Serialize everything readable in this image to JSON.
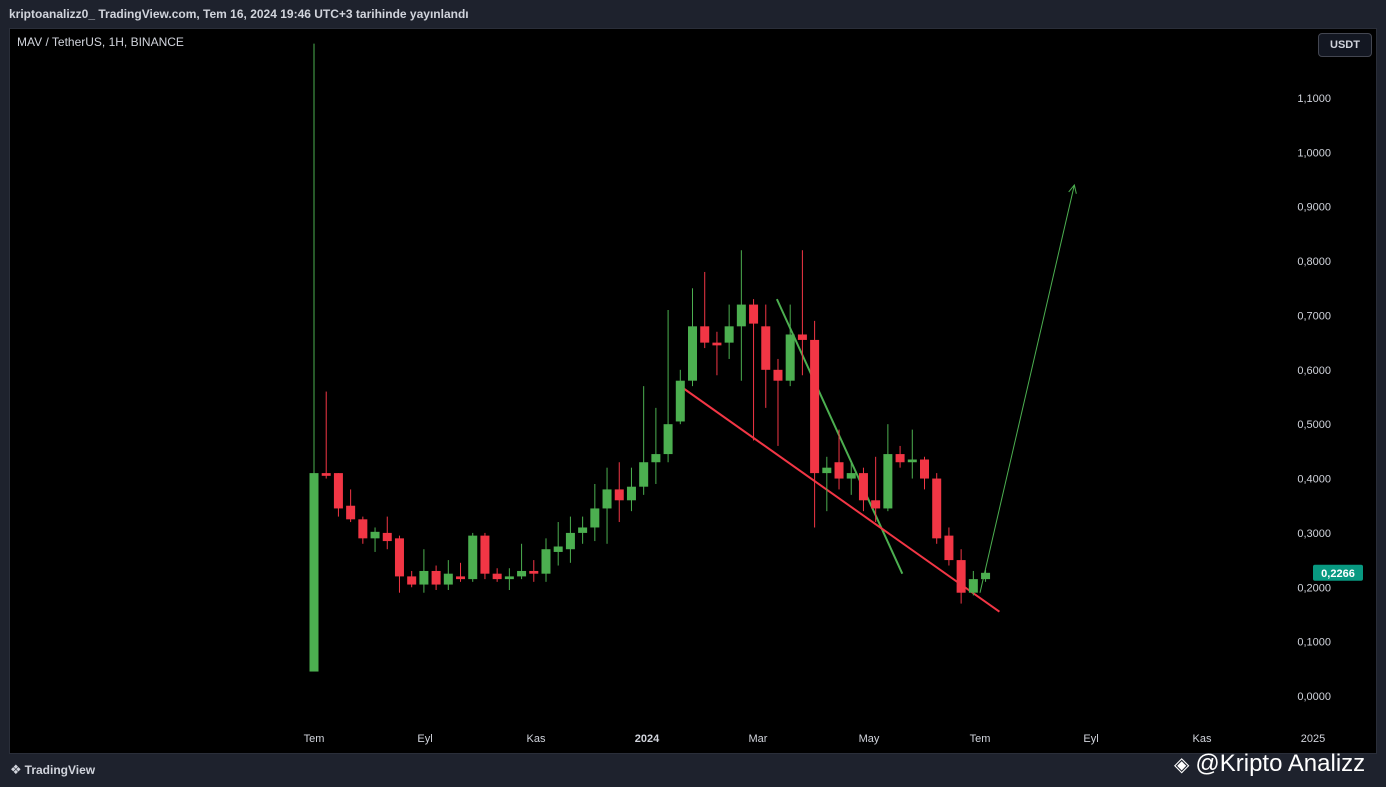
{
  "header": {
    "publish_info": "kriptoanalizz0_ TradingView.com, Tem 16, 2024 19:46 UTC+3 tarihinde yayınlandı"
  },
  "symbol_info": "MAV / TetherUS, 1H, BINANCE",
  "currency_badge": "USDT",
  "footer": {
    "tradingview_logo": "TradingView",
    "watermark": "@Kripto Analizz",
    "watermark_icon": "binance-diamond-icon"
  },
  "colors": {
    "up": "#4caf50",
    "down": "#f23645",
    "price_tag": "#089981",
    "background": "#000000"
  },
  "chart_data": {
    "type": "candlestick",
    "y_axis": {
      "min": 0.0,
      "max": 1.1,
      "ticks": [
        "1,1000",
        "1,0000",
        "0,9000",
        "0,8000",
        "0,7000",
        "0,6000",
        "0,5000",
        "0,4000",
        "0,3000",
        "0,2000",
        "0,1000",
        "0,0000"
      ],
      "tick_values": [
        1.1,
        1.0,
        0.9,
        0.8,
        0.7,
        0.6,
        0.5,
        0.4,
        0.3,
        0.2,
        0.1,
        0.0
      ]
    },
    "x_axis": {
      "labels": [
        {
          "label": "Tem",
          "pos": 0.0,
          "bold": false
        },
        {
          "label": "Eyl",
          "pos": 2.0,
          "bold": false
        },
        {
          "label": "Kas",
          "pos": 4.0,
          "bold": false
        },
        {
          "label": "2024",
          "pos": 6.0,
          "bold": true
        },
        {
          "label": "Mar",
          "pos": 8.0,
          "bold": false
        },
        {
          "label": "May",
          "pos": 10.0,
          "bold": false
        },
        {
          "label": "Tem",
          "pos": 12.0,
          "bold": false
        },
        {
          "label": "Eyl",
          "pos": 14.0,
          "bold": false
        },
        {
          "label": "Kas",
          "pos": 16.0,
          "bold": false
        },
        {
          "label": "2025",
          "pos": 18.0,
          "bold": false
        }
      ]
    },
    "last_price": 0.2266,
    "last_price_label": "0,2266",
    "candles": [
      {
        "t": 0.0,
        "o": 0.045,
        "h": 1.2,
        "l": 0.045,
        "c": 0.41
      },
      {
        "t": 0.22,
        "o": 0.41,
        "h": 0.56,
        "l": 0.4,
        "c": 0.405
      },
      {
        "t": 0.44,
        "o": 0.41,
        "h": 0.41,
        "l": 0.33,
        "c": 0.345
      },
      {
        "t": 0.66,
        "o": 0.35,
        "h": 0.38,
        "l": 0.32,
        "c": 0.325
      },
      {
        "t": 0.88,
        "o": 0.325,
        "h": 0.33,
        "l": 0.28,
        "c": 0.29
      },
      {
        "t": 1.1,
        "o": 0.29,
        "h": 0.31,
        "l": 0.265,
        "c": 0.302
      },
      {
        "t": 1.32,
        "o": 0.3,
        "h": 0.33,
        "l": 0.27,
        "c": 0.285
      },
      {
        "t": 1.54,
        "o": 0.29,
        "h": 0.295,
        "l": 0.19,
        "c": 0.22
      },
      {
        "t": 1.76,
        "o": 0.22,
        "h": 0.23,
        "l": 0.2,
        "c": 0.205
      },
      {
        "t": 1.98,
        "o": 0.205,
        "h": 0.27,
        "l": 0.19,
        "c": 0.23
      },
      {
        "t": 2.2,
        "o": 0.23,
        "h": 0.24,
        "l": 0.195,
        "c": 0.205
      },
      {
        "t": 2.42,
        "o": 0.205,
        "h": 0.25,
        "l": 0.195,
        "c": 0.225
      },
      {
        "t": 2.64,
        "o": 0.22,
        "h": 0.245,
        "l": 0.21,
        "c": 0.215
      },
      {
        "t": 2.86,
        "o": 0.215,
        "h": 0.3,
        "l": 0.21,
        "c": 0.295
      },
      {
        "t": 3.08,
        "o": 0.295,
        "h": 0.3,
        "l": 0.215,
        "c": 0.225
      },
      {
        "t": 3.3,
        "o": 0.225,
        "h": 0.235,
        "l": 0.21,
        "c": 0.215
      },
      {
        "t": 3.52,
        "o": 0.215,
        "h": 0.235,
        "l": 0.195,
        "c": 0.22
      },
      {
        "t": 3.74,
        "o": 0.22,
        "h": 0.28,
        "l": 0.215,
        "c": 0.23
      },
      {
        "t": 3.96,
        "o": 0.23,
        "h": 0.25,
        "l": 0.21,
        "c": 0.225
      },
      {
        "t": 4.18,
        "o": 0.225,
        "h": 0.29,
        "l": 0.21,
        "c": 0.27
      },
      {
        "t": 4.4,
        "o": 0.265,
        "h": 0.32,
        "l": 0.24,
        "c": 0.275
      },
      {
        "t": 4.62,
        "o": 0.27,
        "h": 0.33,
        "l": 0.245,
        "c": 0.3
      },
      {
        "t": 4.84,
        "o": 0.3,
        "h": 0.33,
        "l": 0.28,
        "c": 0.31
      },
      {
        "t": 5.06,
        "o": 0.31,
        "h": 0.39,
        "l": 0.285,
        "c": 0.345
      },
      {
        "t": 5.28,
        "o": 0.345,
        "h": 0.42,
        "l": 0.28,
        "c": 0.38
      },
      {
        "t": 5.5,
        "o": 0.38,
        "h": 0.43,
        "l": 0.32,
        "c": 0.36
      },
      {
        "t": 5.72,
        "o": 0.36,
        "h": 0.42,
        "l": 0.34,
        "c": 0.385
      },
      {
        "t": 5.94,
        "o": 0.385,
        "h": 0.57,
        "l": 0.37,
        "c": 0.43
      },
      {
        "t": 6.16,
        "o": 0.43,
        "h": 0.53,
        "l": 0.39,
        "c": 0.445
      },
      {
        "t": 6.38,
        "o": 0.445,
        "h": 0.71,
        "l": 0.43,
        "c": 0.5
      },
      {
        "t": 6.6,
        "o": 0.505,
        "h": 0.6,
        "l": 0.5,
        "c": 0.58
      },
      {
        "t": 6.82,
        "o": 0.58,
        "h": 0.75,
        "l": 0.57,
        "c": 0.68
      },
      {
        "t": 7.04,
        "o": 0.68,
        "h": 0.78,
        "l": 0.64,
        "c": 0.65
      },
      {
        "t": 7.26,
        "o": 0.65,
        "h": 0.67,
        "l": 0.59,
        "c": 0.645
      },
      {
        "t": 7.48,
        "o": 0.65,
        "h": 0.72,
        "l": 0.62,
        "c": 0.68
      },
      {
        "t": 7.7,
        "o": 0.68,
        "h": 0.82,
        "l": 0.58,
        "c": 0.72
      },
      {
        "t": 7.92,
        "o": 0.72,
        "h": 0.73,
        "l": 0.47,
        "c": 0.685
      },
      {
        "t": 8.14,
        "o": 0.68,
        "h": 0.72,
        "l": 0.53,
        "c": 0.6
      },
      {
        "t": 8.36,
        "o": 0.6,
        "h": 0.62,
        "l": 0.46,
        "c": 0.58
      },
      {
        "t": 8.58,
        "o": 0.58,
        "h": 0.72,
        "l": 0.57,
        "c": 0.665
      },
      {
        "t": 8.8,
        "o": 0.665,
        "h": 0.82,
        "l": 0.59,
        "c": 0.655
      },
      {
        "t": 9.02,
        "o": 0.655,
        "h": 0.69,
        "l": 0.31,
        "c": 0.41
      },
      {
        "t": 9.24,
        "o": 0.41,
        "h": 0.44,
        "l": 0.34,
        "c": 0.42
      },
      {
        "t": 9.46,
        "o": 0.43,
        "h": 0.49,
        "l": 0.38,
        "c": 0.4
      },
      {
        "t": 9.68,
        "o": 0.4,
        "h": 0.43,
        "l": 0.37,
        "c": 0.41
      },
      {
        "t": 9.9,
        "o": 0.41,
        "h": 0.42,
        "l": 0.34,
        "c": 0.36
      },
      {
        "t": 10.12,
        "o": 0.36,
        "h": 0.44,
        "l": 0.32,
        "c": 0.345
      },
      {
        "t": 10.34,
        "o": 0.345,
        "h": 0.5,
        "l": 0.34,
        "c": 0.445
      },
      {
        "t": 10.56,
        "o": 0.445,
        "h": 0.46,
        "l": 0.42,
        "c": 0.43
      },
      {
        "t": 10.78,
        "o": 0.43,
        "h": 0.49,
        "l": 0.4,
        "c": 0.435
      },
      {
        "t": 11.0,
        "o": 0.435,
        "h": 0.44,
        "l": 0.38,
        "c": 0.4
      },
      {
        "t": 11.22,
        "o": 0.4,
        "h": 0.41,
        "l": 0.28,
        "c": 0.29
      },
      {
        "t": 11.44,
        "o": 0.295,
        "h": 0.31,
        "l": 0.24,
        "c": 0.25
      },
      {
        "t": 11.66,
        "o": 0.25,
        "h": 0.27,
        "l": 0.17,
        "c": 0.19
      },
      {
        "t": 11.88,
        "o": 0.19,
        "h": 0.23,
        "l": 0.185,
        "c": 0.215
      },
      {
        "t": 12.1,
        "o": 0.215,
        "h": 0.232,
        "l": 0.21,
        "c": 0.2266
      }
    ],
    "trendlines": [
      {
        "name": "resistance",
        "color": "#4caf50",
        "from": [
          8.34,
          0.73
        ],
        "to": [
          10.6,
          0.225
        ]
      },
      {
        "name": "support",
        "color": "#f23645",
        "from": [
          6.6,
          0.57
        ],
        "to": [
          12.35,
          0.155
        ]
      },
      {
        "name": "target-arrow",
        "color": "#4caf50",
        "from": [
          12.0,
          0.19
        ],
        "to": [
          13.7,
          0.94
        ],
        "arrow": true
      }
    ]
  }
}
